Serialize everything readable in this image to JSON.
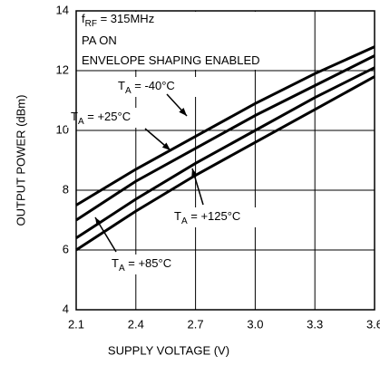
{
  "chart_data": {
    "type": "line",
    "annotations": [
      {
        "parts": [
          "f",
          "RF",
          " = 315MHz"
        ]
      },
      {
        "parts": [
          "PA ON"
        ]
      },
      {
        "parts": [
          "ENVELOPE SHAPING ENABLED"
        ]
      }
    ],
    "xlabel": "SUPPLY VOLTAGE (V)",
    "ylabel": "OUTPUT POWER (dBm)",
    "x": [
      2.1,
      2.4,
      2.7,
      3.0,
      3.3,
      3.6
    ],
    "series": [
      {
        "label_parts": [
          "T",
          "A",
          " = -40°C"
        ],
        "color": "#000000",
        "values": [
          7.5,
          8.7,
          9.8,
          10.9,
          11.9,
          12.8
        ]
      },
      {
        "label_parts": [
          "T",
          "A",
          " = +25°C"
        ],
        "color": "#000000",
        "values": [
          7.0,
          8.3,
          9.4,
          10.5,
          11.5,
          12.5
        ]
      },
      {
        "label_parts": [
          "T",
          "A",
          " = +85°C"
        ],
        "color": "#000000",
        "values": [
          6.4,
          7.7,
          8.9,
          10.0,
          11.1,
          12.1
        ]
      },
      {
        "label_parts": [
          "T",
          "A",
          " = +125°C"
        ],
        "color": "#000000",
        "values": [
          6.0,
          7.3,
          8.5,
          9.6,
          10.7,
          11.8
        ]
      }
    ],
    "xlim": [
      2.1,
      3.6
    ],
    "xticks": [
      2.1,
      2.4,
      2.7,
      {
        "value": 3,
        "label": "3.0"
      },
      3.3,
      3.6
    ],
    "ylim": [
      4,
      14
    ],
    "yticks": [
      4,
      6,
      8,
      10,
      12,
      14
    ],
    "grid": true
  }
}
